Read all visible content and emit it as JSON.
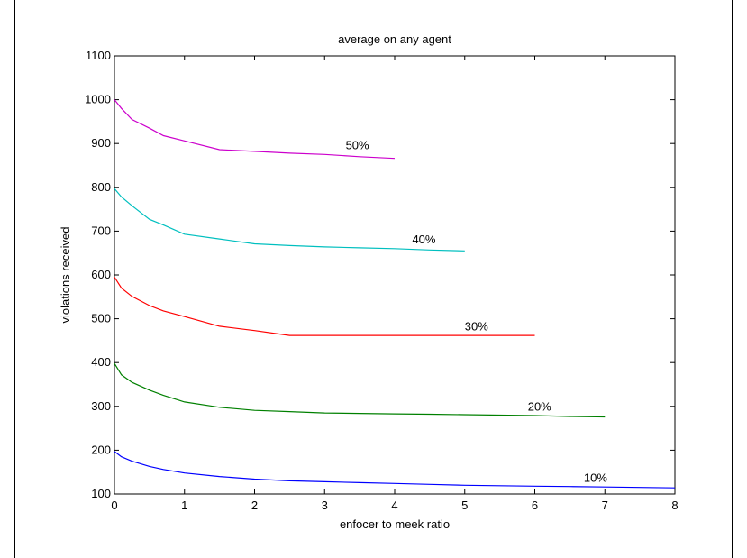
{
  "chart_data": {
    "type": "line",
    "title": "average on any agent",
    "xlabel": "enfocer to meek ratio",
    "ylabel": "violations received",
    "xlim": [
      0,
      8
    ],
    "ylim": [
      100,
      1100
    ],
    "xticks": [
      "0",
      "1",
      "2",
      "3",
      "4",
      "5",
      "6",
      "7",
      "8"
    ],
    "yticks": [
      "100",
      "200",
      "300",
      "400",
      "500",
      "600",
      "700",
      "800",
      "900",
      "1000",
      "1100"
    ],
    "grid": false,
    "series": [
      {
        "name": "50%",
        "color": "#cc00cc",
        "label_at": [
          3.3,
          887
        ],
        "points": [
          [
            0,
            1000
          ],
          [
            0.1,
            980
          ],
          [
            0.25,
            955
          ],
          [
            0.5,
            935
          ],
          [
            0.7,
            918
          ],
          [
            1,
            906
          ],
          [
            1.5,
            886
          ],
          [
            2,
            882
          ],
          [
            2.5,
            878
          ],
          [
            3,
            875
          ],
          [
            3.5,
            870
          ],
          [
            4,
            866
          ]
        ]
      },
      {
        "name": "40%",
        "color": "#00bfbf",
        "label_at": [
          4.25,
          672
        ],
        "points": [
          [
            0,
            797
          ],
          [
            0.1,
            778
          ],
          [
            0.25,
            758
          ],
          [
            0.5,
            727
          ],
          [
            0.7,
            714
          ],
          [
            1,
            693
          ],
          [
            1.5,
            682
          ],
          [
            2,
            671
          ],
          [
            2.5,
            667
          ],
          [
            3,
            664
          ],
          [
            3.5,
            662
          ],
          [
            4,
            660
          ],
          [
            4.5,
            657
          ],
          [
            5,
            655
          ]
        ]
      },
      {
        "name": "30%",
        "color": "#ff0000",
        "label_at": [
          5.0,
          473
        ],
        "points": [
          [
            0,
            595
          ],
          [
            0.1,
            570
          ],
          [
            0.25,
            551
          ],
          [
            0.5,
            530
          ],
          [
            0.7,
            518
          ],
          [
            1,
            505
          ],
          [
            1.5,
            483
          ],
          [
            2,
            473
          ],
          [
            2.5,
            462
          ],
          [
            3,
            462
          ],
          [
            3.5,
            462
          ],
          [
            4,
            462
          ],
          [
            4.5,
            462
          ],
          [
            5,
            462
          ],
          [
            5.5,
            462
          ],
          [
            6,
            462
          ]
        ]
      },
      {
        "name": "20%",
        "color": "#008000",
        "label_at": [
          5.9,
          290
        ],
        "points": [
          [
            0,
            398
          ],
          [
            0.1,
            372
          ],
          [
            0.25,
            355
          ],
          [
            0.5,
            337
          ],
          [
            0.7,
            325
          ],
          [
            1,
            310
          ],
          [
            1.5,
            298
          ],
          [
            2,
            291
          ],
          [
            2.5,
            288
          ],
          [
            3,
            285
          ],
          [
            3.5,
            284
          ],
          [
            4,
            283
          ],
          [
            4.5,
            282
          ],
          [
            5,
            281
          ],
          [
            5.5,
            280
          ],
          [
            6,
            279
          ],
          [
            6.5,
            277
          ],
          [
            7,
            276
          ]
        ]
      },
      {
        "name": "10%",
        "color": "#0000ff",
        "label_at": [
          6.7,
          128
        ],
        "points": [
          [
            0,
            197
          ],
          [
            0.1,
            185
          ],
          [
            0.25,
            175
          ],
          [
            0.5,
            163
          ],
          [
            0.7,
            156
          ],
          [
            1,
            148
          ],
          [
            1.5,
            140
          ],
          [
            2,
            134
          ],
          [
            2.5,
            130
          ],
          [
            3,
            128
          ],
          [
            3.5,
            126
          ],
          [
            4,
            124
          ],
          [
            4.5,
            122
          ],
          [
            5,
            120
          ],
          [
            5.5,
            119
          ],
          [
            6,
            118
          ],
          [
            6.5,
            117
          ],
          [
            7,
            116
          ],
          [
            7.5,
            115
          ],
          [
            8,
            114
          ]
        ]
      }
    ]
  }
}
